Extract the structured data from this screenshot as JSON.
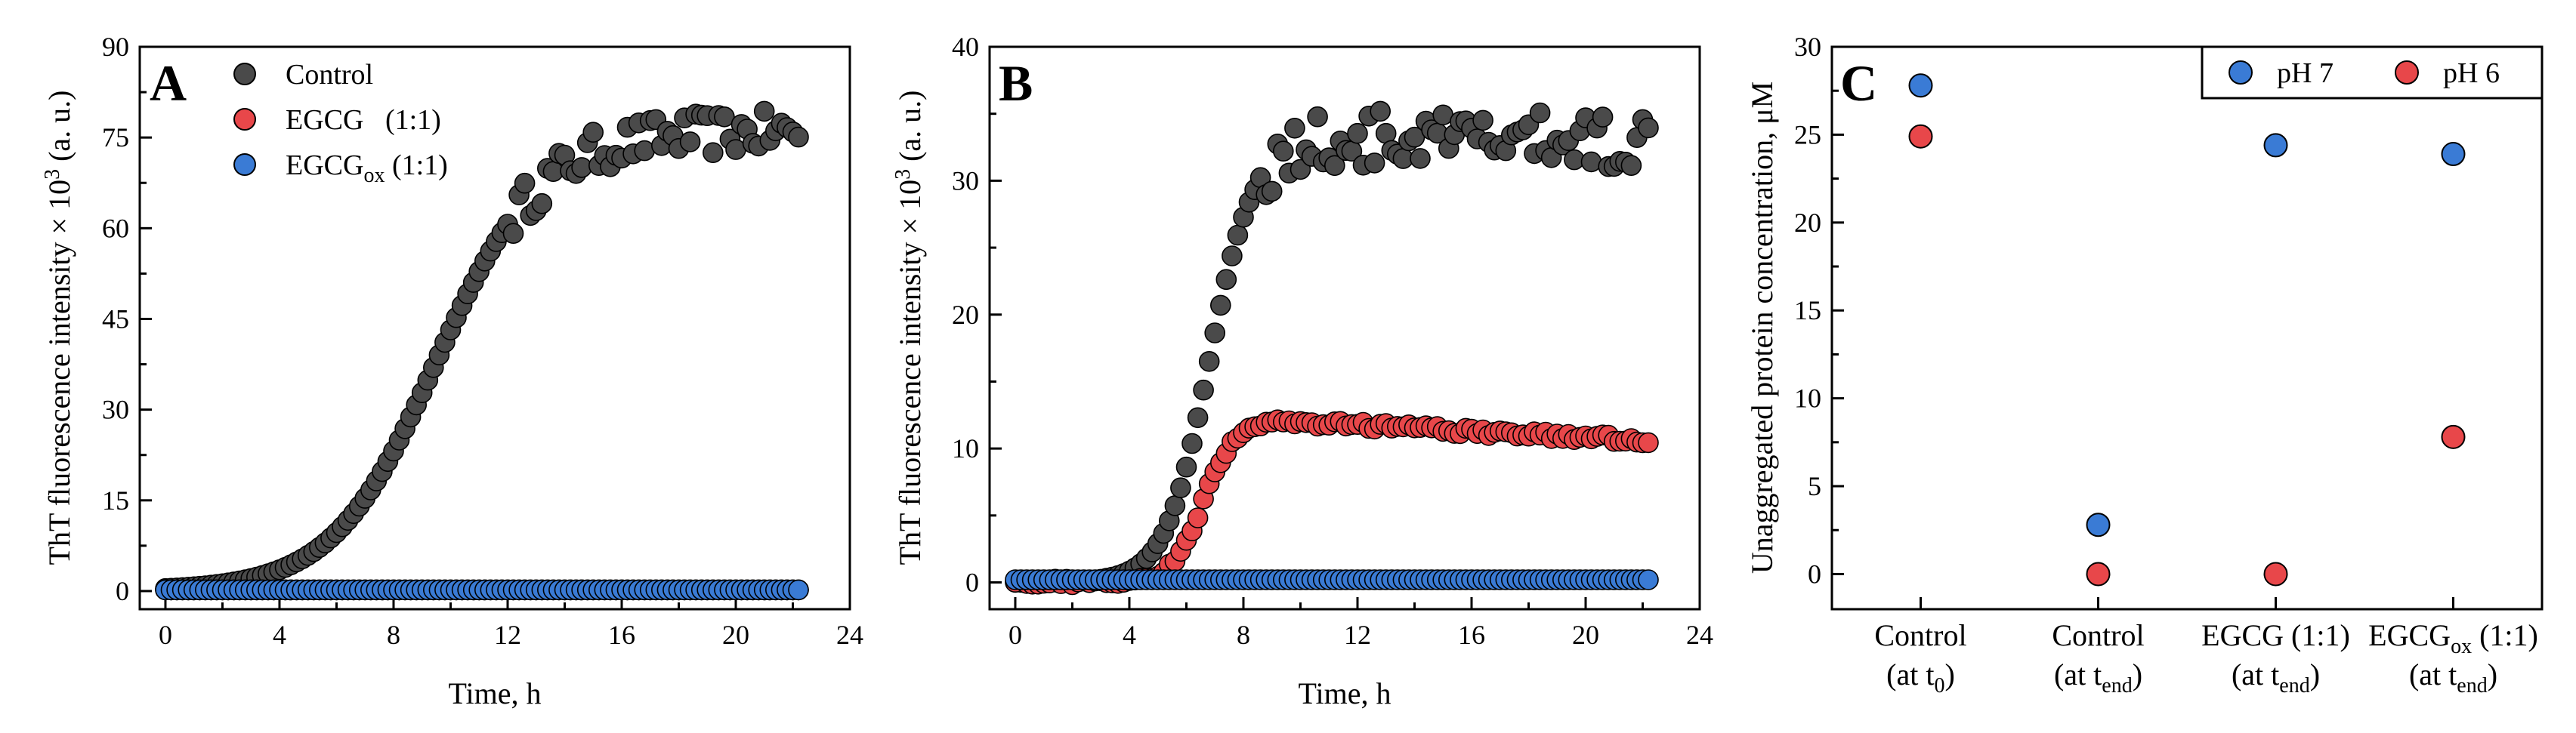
{
  "chart_data": [
    {
      "type": "scatter",
      "panel": "A",
      "ylabel": "ThT fluorescence intensity × 10",
      "ylabel_sup": "3",
      "ylabel_unit": " (a. u.)",
      "xlabel": "Time, h",
      "xlim": [
        -0.9,
        24
      ],
      "ylim": [
        -3,
        90
      ],
      "xticks": [
        "0",
        "4",
        "8",
        "12",
        "16",
        "20",
        "24"
      ],
      "yticks": [
        "0",
        "15",
        "30",
        "45",
        "60",
        "75",
        "90"
      ],
      "legend_position": "top-left",
      "series": [
        {
          "name": "Control",
          "suffix": "",
          "label_tail": "",
          "color": "#4a4a4a",
          "model": {
            "kind": "sigmoid",
            "ymax": 76,
            "t0": 9.5,
            "k": 0.55,
            "noise_start": 12,
            "noise_amp": 3.5
          }
        },
        {
          "name": "EGCG",
          "suffix": "",
          "label_tail": "   (1:1)",
          "color": "#e8474a",
          "model": {
            "kind": "flat",
            "y": 0.2
          }
        },
        {
          "name": "EGCG",
          "suffix": "ox",
          "label_tail": " (1:1)",
          "color": "#3a7bd5",
          "model": {
            "kind": "flat",
            "y": 0.2
          }
        }
      ],
      "t_end": 22.2,
      "t_step": 0.2
    },
    {
      "type": "scatter",
      "panel": "B",
      "ylabel": "ThT fluorescence intensity × 10",
      "ylabel_sup": "3",
      "ylabel_unit": " (a. u.)",
      "xlabel": "Time, h",
      "xlim": [
        -0.9,
        24
      ],
      "ylim": [
        -2,
        40
      ],
      "xticks": [
        "0",
        "4",
        "8",
        "12",
        "16",
        "20",
        "24"
      ],
      "yticks": [
        "0",
        "10",
        "20",
        "30",
        "40"
      ],
      "series": [
        {
          "name": "Control",
          "color": "#4a4a4a",
          "model": {
            "kind": "sigmoid",
            "ymax": 33,
            "t0": 6.8,
            "k": 1.3,
            "noise_start": 8.5,
            "noise_amp": 2.2
          }
        },
        {
          "name": "EGCG (1:1)",
          "color": "#e8474a",
          "model": {
            "kind": "rise_decay",
            "ymax": 12,
            "t0": 6.6,
            "k": 1.9,
            "peak": 9.5,
            "decay": 0.11
          }
        },
        {
          "name": "EGCGox (1:1)",
          "color": "#3a7bd5",
          "model": {
            "kind": "flat",
            "y": 0.2
          }
        }
      ],
      "t_end": 22.2,
      "t_step": 0.2
    },
    {
      "type": "scatter",
      "panel": "C",
      "ylabel": "Unaggregated protein concentration, μM",
      "ylim": [
        -2,
        30
      ],
      "yticks": [
        "0",
        "5",
        "10",
        "15",
        "20",
        "25",
        "30"
      ],
      "categories": [
        {
          "line1": "Control",
          "line2": "(at t",
          "sub2": "0",
          "tail2": ")"
        },
        {
          "line1": "Control",
          "line2": "(at t",
          "sub2": "end",
          "tail2": ")"
        },
        {
          "line1": "EGCG (1:1)",
          "line2": "(at t",
          "sub2": "end",
          "tail2": ")"
        },
        {
          "line1": "EGCG",
          "sub1": "ox",
          "tail1": " (1:1)",
          "line2": "(at t",
          "sub2": "end",
          "tail2": ")"
        }
      ],
      "legend_position": "top-right",
      "series": [
        {
          "name": "pH 7",
          "color": "#3a7bd5",
          "values": [
            27.8,
            2.8,
            24.4,
            23.9
          ]
        },
        {
          "name": "pH 6",
          "color": "#e8474a",
          "values": [
            24.9,
            0.0,
            0.0,
            7.8
          ]
        }
      ]
    }
  ]
}
